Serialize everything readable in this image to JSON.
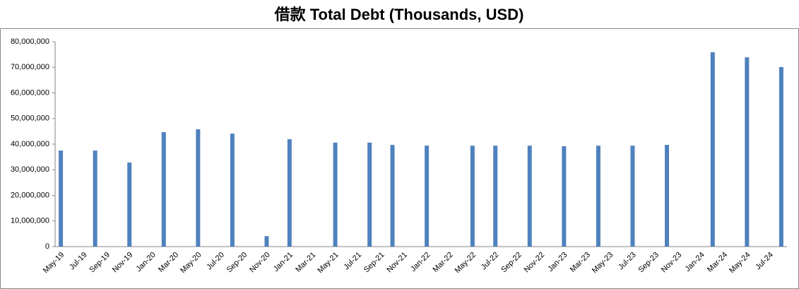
{
  "chart_data": {
    "type": "bar",
    "title": "借款 Total Debt (Thousands, USD)",
    "categories": [
      "May-19",
      null,
      "Jul-19",
      null,
      "Sep-19",
      null,
      "Nov-19",
      null,
      "Jan-20",
      null,
      "Mar-20",
      null,
      "May-20",
      null,
      "Jul-20",
      null,
      "Sep-20",
      null,
      "Nov-20",
      null,
      "Jan-21",
      null,
      "Mar-21",
      null,
      "May-21",
      null,
      "Jul-21",
      null,
      "Sep-21",
      null,
      "Nov-21",
      null,
      "Jan-22",
      null,
      "Mar-22",
      null,
      "May-22",
      null,
      "Jul-22",
      null,
      "Sep-22",
      null,
      "Nov-22",
      null,
      "Jan-23",
      null,
      "Mar-23",
      null,
      "May-23",
      null,
      "Jul-23",
      null,
      "Sep-23",
      null,
      "Nov-23",
      null,
      "Jan-24",
      null,
      "Mar-24",
      null,
      "May-24",
      null,
      "Jul-24",
      null
    ],
    "values": [
      37500000,
      null,
      null,
      37500000,
      null,
      null,
      32800000,
      null,
      null,
      44700000,
      null,
      null,
      45800000,
      null,
      null,
      44100000,
      null,
      null,
      4100000,
      null,
      41900000,
      null,
      null,
      null,
      40600000,
      null,
      null,
      40600000,
      null,
      39700000,
      null,
      null,
      39400000,
      null,
      null,
      null,
      39400000,
      null,
      39400000,
      null,
      null,
      39400000,
      null,
      null,
      39200000,
      null,
      null,
      39400000,
      null,
      null,
      39400000,
      null,
      null,
      39700000,
      null,
      null,
      null,
      75900000,
      null,
      null,
      73900000,
      null,
      null,
      70100000
    ],
    "color": "#4f81bd",
    "ylim": [
      0,
      80000000
    ],
    "yticks": [
      0,
      {
        "value": 10000000,
        "label": "10,000,000"
      },
      {
        "value": 20000000,
        "label": "20,000,000"
      },
      {
        "value": 30000000,
        "label": "30,000,000"
      },
      {
        "value": 40000000,
        "label": "40,000,000"
      },
      {
        "value": 50000000,
        "label": "50,000,000"
      },
      {
        "value": 60000000,
        "label": "60,000,000"
      },
      {
        "value": 70000000,
        "label": "70,000,000"
      },
      {
        "value": 80000000,
        "label": "80,000,000"
      }
    ],
    "grid": false
  }
}
